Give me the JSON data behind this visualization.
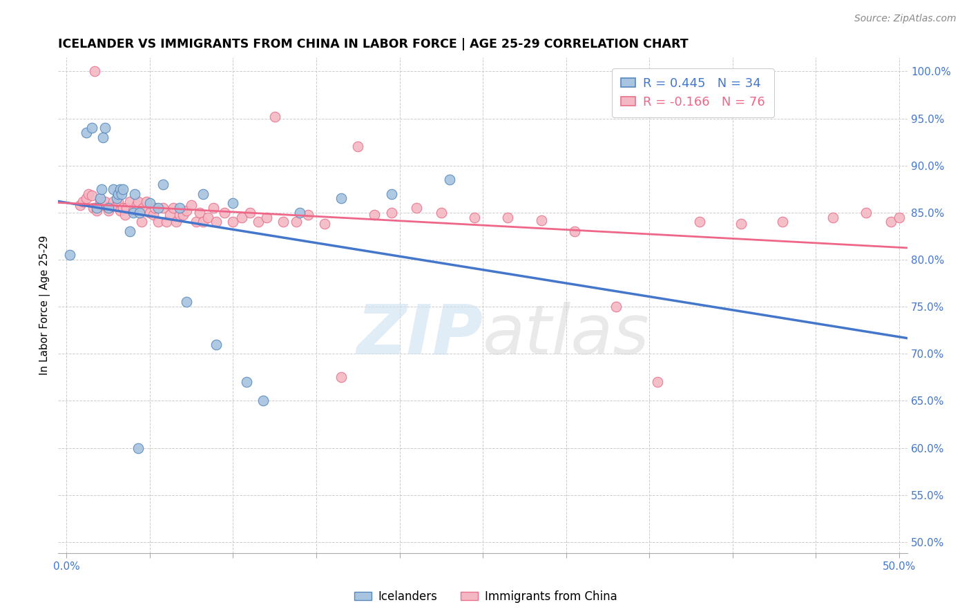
{
  "title": "ICELANDER VS IMMIGRANTS FROM CHINA IN LABOR FORCE | AGE 25-29 CORRELATION CHART",
  "source": "Source: ZipAtlas.com",
  "ylabel": "In Labor Force | Age 25-29",
  "xlim": [
    -0.005,
    0.505
  ],
  "ylim": [
    0.488,
    1.015
  ],
  "xticks": [
    0.0,
    0.05,
    0.1,
    0.15,
    0.2,
    0.25,
    0.3,
    0.35,
    0.4,
    0.45,
    0.5
  ],
  "yticks": [
    0.5,
    0.55,
    0.6,
    0.65,
    0.7,
    0.75,
    0.8,
    0.85,
    0.9,
    0.95,
    1.0
  ],
  "xticklabels": [
    "0.0%",
    "",
    "",
    "",
    "",
    "",
    "",
    "",
    "",
    "",
    "50.0%"
  ],
  "yticklabels_right": [
    "50.0%",
    "55.0%",
    "60.0%",
    "65.0%",
    "70.0%",
    "75.0%",
    "80.0%",
    "85.0%",
    "90.0%",
    "95.0%",
    "100.0%"
  ],
  "icelanders_R": 0.445,
  "icelanders_N": 34,
  "china_R": -0.166,
  "china_N": 76,
  "icelander_color": "#a8c4e0",
  "china_color": "#f4b8c4",
  "icelander_edge_color": "#5588bb",
  "china_edge_color": "#e8708a",
  "icelander_line_color": "#4477cc",
  "china_line_color": "#ee6688",
  "icel_x": [
    0.002,
    0.012,
    0.015,
    0.018,
    0.02,
    0.021,
    0.022,
    0.023,
    0.025,
    0.028,
    0.03,
    0.031,
    0.032,
    0.033,
    0.034,
    0.038,
    0.04,
    0.041,
    0.043,
    0.044,
    0.05,
    0.055,
    0.058,
    0.068,
    0.072,
    0.082,
    0.09,
    0.1,
    0.108,
    0.118,
    0.14,
    0.165,
    0.195,
    0.23
  ],
  "icel_y": [
    0.805,
    0.935,
    0.94,
    0.855,
    0.865,
    0.875,
    0.93,
    0.94,
    0.855,
    0.875,
    0.865,
    0.87,
    0.875,
    0.87,
    0.875,
    0.83,
    0.85,
    0.87,
    0.6,
    0.85,
    0.86,
    0.855,
    0.88,
    0.855,
    0.755,
    0.87,
    0.71,
    0.86,
    0.67,
    0.65,
    0.85,
    0.865,
    0.87,
    0.885
  ],
  "china_x": [
    0.008,
    0.01,
    0.012,
    0.013,
    0.015,
    0.016,
    0.017,
    0.018,
    0.02,
    0.022,
    0.023,
    0.025,
    0.026,
    0.028,
    0.03,
    0.031,
    0.032,
    0.034,
    0.035,
    0.036,
    0.038,
    0.04,
    0.042,
    0.043,
    0.045,
    0.046,
    0.048,
    0.05,
    0.052,
    0.053,
    0.055,
    0.058,
    0.06,
    0.062,
    0.064,
    0.066,
    0.068,
    0.07,
    0.072,
    0.075,
    0.078,
    0.08,
    0.082,
    0.085,
    0.088,
    0.09,
    0.095,
    0.1,
    0.105,
    0.11,
    0.115,
    0.12,
    0.125,
    0.13,
    0.138,
    0.145,
    0.155,
    0.165,
    0.175,
    0.185,
    0.195,
    0.21,
    0.225,
    0.245,
    0.265,
    0.285,
    0.305,
    0.33,
    0.355,
    0.38,
    0.405,
    0.43,
    0.46,
    0.48,
    0.495,
    0.5
  ],
  "china_y": [
    0.858,
    0.862,
    0.865,
    0.87,
    0.868,
    0.855,
    1.0,
    0.852,
    0.862,
    0.858,
    0.862,
    0.852,
    0.856,
    0.862,
    0.858,
    0.862,
    0.852,
    0.855,
    0.848,
    0.855,
    0.862,
    0.852,
    0.858,
    0.862,
    0.84,
    0.855,
    0.862,
    0.85,
    0.848,
    0.855,
    0.84,
    0.855,
    0.84,
    0.848,
    0.855,
    0.84,
    0.848,
    0.848,
    0.852,
    0.858,
    0.84,
    0.85,
    0.84,
    0.845,
    0.855,
    0.84,
    0.85,
    0.84,
    0.845,
    0.85,
    0.84,
    0.845,
    0.952,
    0.84,
    0.84,
    0.848,
    0.838,
    0.675,
    0.92,
    0.848,
    0.85,
    0.855,
    0.85,
    0.845,
    0.845,
    0.842,
    0.83,
    0.75,
    0.67,
    0.84,
    0.838,
    0.84,
    0.845,
    0.85,
    0.84,
    0.845
  ]
}
